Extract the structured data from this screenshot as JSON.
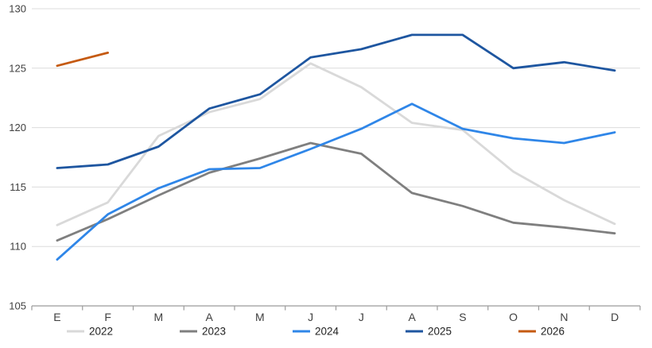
{
  "chart_data": {
    "type": "line",
    "title": "",
    "xlabel": "",
    "ylabel": "",
    "categories": [
      "E",
      "F",
      "M",
      "A",
      "M",
      "J",
      "J",
      "A",
      "S",
      "O",
      "N",
      "D"
    ],
    "series": [
      {
        "name": "2022",
        "color": "#d9d9d9",
        "values": [
          111.8,
          113.7,
          119.3,
          121.3,
          122.4,
          125.4,
          123.4,
          120.4,
          119.8,
          116.3,
          113.9,
          111.9
        ]
      },
      {
        "name": "2023",
        "color": "#7f7f7f",
        "values": [
          110.5,
          112.3,
          114.3,
          116.2,
          117.4,
          118.7,
          117.8,
          114.5,
          113.4,
          112.0,
          111.6,
          111.1
        ]
      },
      {
        "name": "2024",
        "color": "#2f86e8",
        "values": [
          108.9,
          112.7,
          114.9,
          116.5,
          116.6,
          118.2,
          119.9,
          122.0,
          119.9,
          119.1,
          118.7,
          119.6
        ]
      },
      {
        "name": "2025",
        "color": "#1e56a0",
        "values": [
          116.6,
          116.9,
          118.4,
          121.6,
          122.8,
          125.9,
          126.6,
          127.8,
          127.8,
          125.0,
          125.5,
          124.8
        ]
      },
      {
        "name": "2026",
        "color": "#c55a11",
        "values": [
          125.2,
          126.3
        ]
      }
    ],
    "ylim": [
      105,
      130
    ],
    "yticks": [
      105,
      110,
      115,
      120,
      125,
      130
    ],
    "grid": true,
    "legend_position": "bottom",
    "colors": {
      "background": "#ffffff",
      "gridline": "#dcdcdc",
      "axis": "#9b9b9b",
      "tick_label": "#404040",
      "legend_label": "#1f1f1f"
    }
  }
}
